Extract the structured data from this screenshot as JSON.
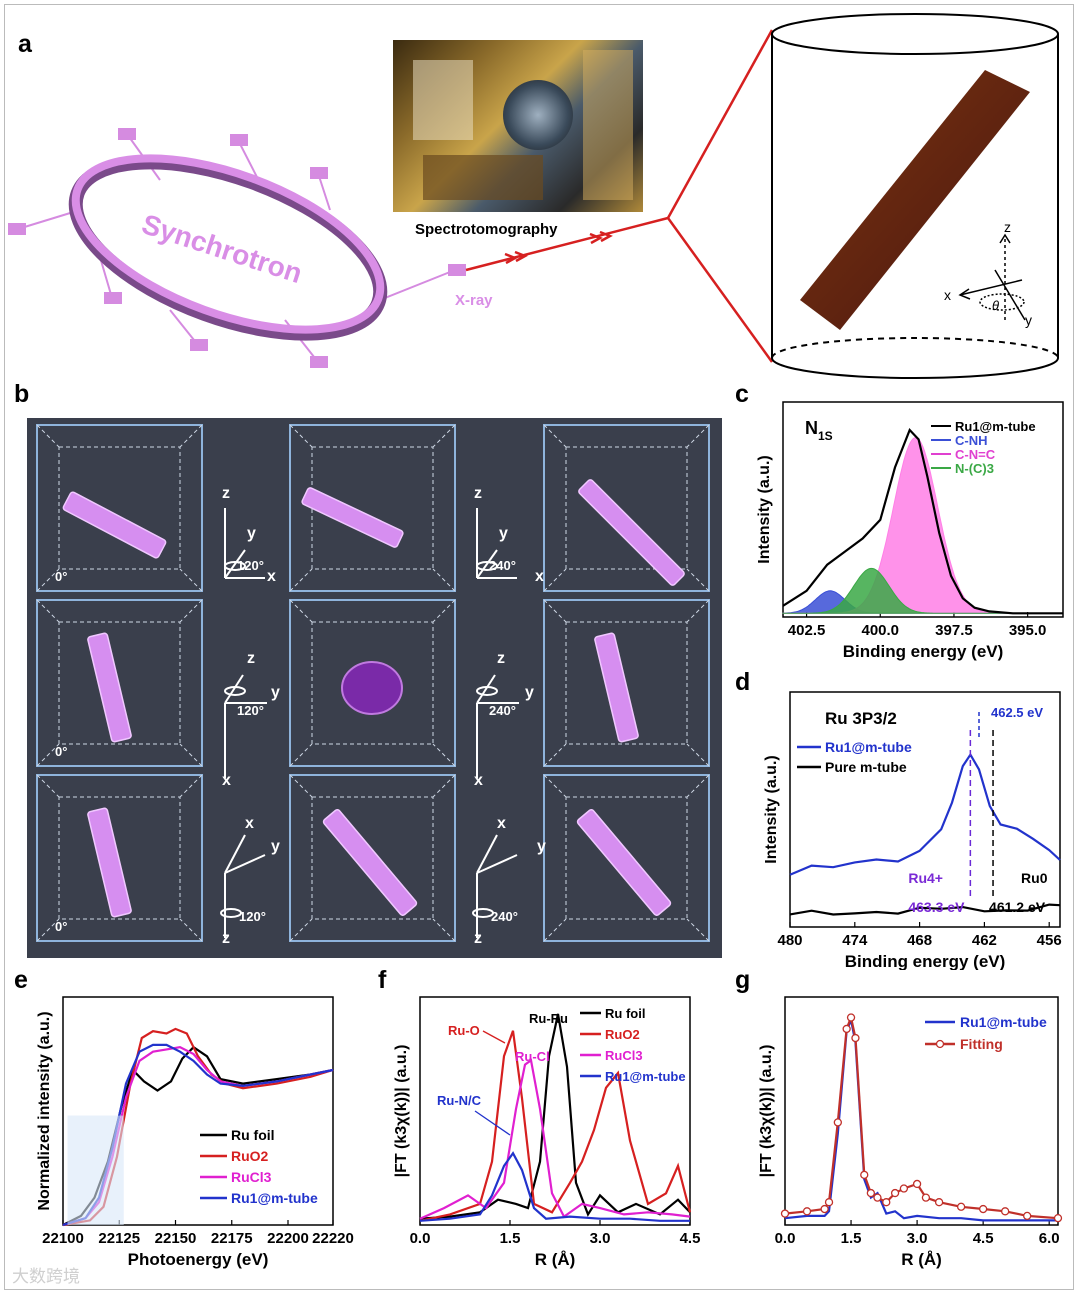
{
  "figure": {
    "panel_letters": [
      "a",
      "b",
      "c",
      "d",
      "e",
      "f",
      "g"
    ],
    "watermark": "大数跨境"
  },
  "panel_a": {
    "ring_label": "Synchrotron",
    "xray_label": "X-ray",
    "photo_caption": "Spectrotomography",
    "axis_z": "z",
    "axis_x": "x",
    "axis_y": "y",
    "angle_symbol": "θ"
  },
  "panel_b": {
    "angle_0": "0°",
    "rot_120": "120°",
    "rot_240": "240°",
    "ax_x": "x",
    "ax_y": "y",
    "ax_z": "z"
  },
  "chart_data": [
    {
      "id": "c",
      "type": "line",
      "title": "N1S",
      "xlabel": "Binding energy (eV)",
      "ylabel": "Intensity (a.u.)",
      "xlim": [
        403.3,
        393.8
      ],
      "xticks": [
        "402.5",
        "400.0",
        "397.5",
        "395.0"
      ],
      "xtick_values": [
        402.5,
        400.0,
        397.5,
        395.0
      ],
      "legend": [
        "Ru1@m-tube",
        "C-NH",
        "C-N=C",
        "N-(C)3"
      ],
      "series": [
        {
          "name": "Ru1@m-tube",
          "color": "#000000",
          "x": [
            403.3,
            402.5,
            401.8,
            401.2,
            400.6,
            400.0,
            399.5,
            399.0,
            398.7,
            398.4,
            398.0,
            397.6,
            397.2,
            396.8,
            396.3,
            395.5,
            394.5,
            393.8
          ],
          "y": [
            0.06,
            0.14,
            0.28,
            0.35,
            0.42,
            0.52,
            0.8,
            1.0,
            0.95,
            0.75,
            0.45,
            0.22,
            0.1,
            0.05,
            0.03,
            0.02,
            0.02,
            0.02
          ]
        },
        {
          "name": "C-NH",
          "color": "#3a4fd6",
          "peak": 401.7,
          "height": 0.12,
          "width": 0.5
        },
        {
          "name": "C-N=C",
          "color": "#ff7fe6",
          "peak": 398.8,
          "height": 0.94,
          "width": 0.75
        },
        {
          "name": "N-(C)3",
          "color": "#3aa845",
          "peak": 400.3,
          "height": 0.24,
          "width": 0.6
        }
      ]
    },
    {
      "id": "d",
      "type": "line",
      "title": "Ru 3P3/2",
      "xlabel": "Binding energy (eV)",
      "ylabel": "Intensity (a.u.)",
      "xlim": [
        480,
        455
      ],
      "xticks": [
        "480",
        "474",
        "468",
        "462",
        "456"
      ],
      "xtick_values": [
        480,
        474,
        468,
        462,
        456
      ],
      "legend": [
        "Ru1@m-tube",
        "Pure m-tube"
      ],
      "annotations": [
        "462.5 eV",
        "Ru4+",
        "Ru0",
        "463.3 eV",
        "461.2 eV"
      ],
      "series": [
        {
          "name": "Ru1@m-tube",
          "color": "#2233cc",
          "x": [
            480,
            478,
            476,
            474,
            472,
            470,
            468,
            466,
            465,
            464,
            463.3,
            462.5,
            461.5,
            460.5,
            459,
            457.5,
            456,
            455
          ],
          "y": [
            0.3,
            0.34,
            0.33,
            0.37,
            0.4,
            0.39,
            0.44,
            0.55,
            0.7,
            0.92,
            1.0,
            0.92,
            0.7,
            0.58,
            0.55,
            0.5,
            0.45,
            0.4
          ]
        },
        {
          "name": "Pure m-tube",
          "color": "#000000",
          "x": [
            480,
            478,
            476,
            474,
            472,
            470,
            468,
            466,
            464,
            462,
            460,
            458,
            456,
            455
          ],
          "y": [
            0.06,
            0.08,
            0.07,
            0.09,
            0.1,
            0.08,
            0.1,
            0.09,
            0.11,
            0.1,
            0.11,
            0.1,
            0.12,
            0.11
          ]
        }
      ]
    },
    {
      "id": "e",
      "type": "line",
      "title": "",
      "xlabel": "Photoenergy (eV)",
      "ylabel": "Normalized intensity (a.u.)",
      "xlim": [
        22100,
        22220
      ],
      "xticks": [
        "22100",
        "22125",
        "22150",
        "22175",
        "22200",
        "22220"
      ],
      "xtick_values": [
        22100,
        22125,
        22150,
        22175,
        22200,
        22220
      ],
      "legend": [
        "Ru foil",
        "RuO2",
        "RuCl3",
        "Ru1@m-tube"
      ],
      "series": [
        {
          "name": "Ru foil",
          "color": "#000000",
          "x": [
            22100,
            22108,
            22114,
            22120,
            22126,
            22131,
            22136,
            22142,
            22148,
            22153,
            22158,
            22164,
            22170,
            22180,
            22195,
            22210,
            22220
          ],
          "y": [
            0.0,
            0.04,
            0.12,
            0.28,
            0.52,
            0.68,
            0.63,
            0.59,
            0.63,
            0.73,
            0.78,
            0.74,
            0.64,
            0.62,
            0.64,
            0.66,
            0.68
          ]
        },
        {
          "name": "RuO2",
          "color": "#d62020",
          "x": [
            22100,
            22112,
            22118,
            22124,
            22130,
            22135,
            22140,
            22146,
            22150,
            22155,
            22160,
            22166,
            22172,
            22180,
            22195,
            22210,
            22220
          ],
          "y": [
            0.0,
            0.02,
            0.08,
            0.3,
            0.62,
            0.82,
            0.85,
            0.84,
            0.86,
            0.84,
            0.74,
            0.66,
            0.62,
            0.6,
            0.62,
            0.65,
            0.68
          ]
        },
        {
          "name": "RuCl3",
          "color": "#e020d0",
          "x": [
            22100,
            22110,
            22116,
            22122,
            22128,
            22134,
            22140,
            22146,
            22152,
            22158,
            22164,
            22170,
            22180,
            22195,
            22210,
            22220
          ],
          "y": [
            0.0,
            0.03,
            0.1,
            0.3,
            0.56,
            0.72,
            0.76,
            0.77,
            0.78,
            0.75,
            0.68,
            0.63,
            0.61,
            0.63,
            0.66,
            0.68
          ]
        },
        {
          "name": "Ru1@m-tube",
          "color": "#2233cc",
          "x": [
            22100,
            22110,
            22116,
            22122,
            22128,
            22134,
            22140,
            22146,
            22152,
            22158,
            22164,
            22170,
            22180,
            22195,
            22210,
            22220
          ],
          "y": [
            0.0,
            0.03,
            0.12,
            0.34,
            0.62,
            0.76,
            0.79,
            0.79,
            0.76,
            0.72,
            0.66,
            0.62,
            0.61,
            0.63,
            0.66,
            0.68
          ]
        }
      ]
    },
    {
      "id": "f",
      "type": "line",
      "title": "",
      "xlabel": "R (Å)",
      "ylabel": "|FT (k3χ(k))| (a.u.)",
      "xlim": [
        0,
        4.5
      ],
      "xticks": [
        "0.0",
        "1.5",
        "3.0",
        "4.5"
      ],
      "xtick_values": [
        0,
        1.5,
        3.0,
        4.5
      ],
      "legend": [
        "Ru foil",
        "RuO2",
        "RuCl3",
        "Ru1@m-tube"
      ],
      "annotations": [
        "Ru-Ru",
        "Ru-O",
        "Ru-Cl",
        "Ru-N/C"
      ],
      "series": [
        {
          "name": "Ru foil",
          "color": "#000000",
          "x": [
            0,
            0.5,
            1.0,
            1.3,
            1.6,
            1.8,
            2.0,
            2.15,
            2.3,
            2.45,
            2.6,
            2.8,
            3.0,
            3.3,
            3.6,
            4.0,
            4.3,
            4.5
          ],
          "y": [
            0.03,
            0.04,
            0.06,
            0.12,
            0.1,
            0.08,
            0.3,
            0.8,
            1.0,
            0.75,
            0.2,
            0.05,
            0.14,
            0.06,
            0.1,
            0.05,
            0.12,
            0.06
          ]
        },
        {
          "name": "RuO2",
          "color": "#d62020",
          "x": [
            0,
            0.5,
            1.0,
            1.2,
            1.4,
            1.55,
            1.7,
            1.9,
            2.2,
            2.5,
            2.7,
            2.9,
            3.1,
            3.3,
            3.5,
            3.8,
            4.1,
            4.3,
            4.5
          ],
          "y": [
            0.02,
            0.05,
            0.1,
            0.3,
            0.8,
            0.92,
            0.6,
            0.1,
            0.06,
            0.2,
            0.3,
            0.45,
            0.65,
            0.72,
            0.4,
            0.1,
            0.15,
            0.28,
            0.06
          ]
        },
        {
          "name": "RuCl3",
          "color": "#e020d0",
          "x": [
            0,
            0.4,
            0.8,
            1.1,
            1.4,
            1.6,
            1.75,
            1.85,
            2.0,
            2.2,
            2.4,
            2.7,
            3.0,
            3.4,
            3.8,
            4.2,
            4.5
          ],
          "y": [
            0.03,
            0.08,
            0.14,
            0.08,
            0.2,
            0.55,
            0.76,
            0.78,
            0.55,
            0.15,
            0.04,
            0.1,
            0.08,
            0.05,
            0.06,
            0.05,
            0.04
          ]
        },
        {
          "name": "Ru1@m-tube",
          "color": "#2233cc",
          "x": [
            0,
            0.5,
            1.0,
            1.2,
            1.4,
            1.55,
            1.7,
            1.9,
            2.1,
            2.5,
            3.0,
            3.5,
            4.0,
            4.5
          ],
          "y": [
            0.02,
            0.03,
            0.05,
            0.14,
            0.28,
            0.34,
            0.26,
            0.08,
            0.03,
            0.04,
            0.03,
            0.03,
            0.02,
            0.02
          ]
        }
      ]
    },
    {
      "id": "g",
      "type": "line",
      "title": "",
      "xlabel": "R (Å)",
      "ylabel": "|FT (k3χ(k))| (a.u.)",
      "xlim": [
        0,
        6.2
      ],
      "xticks": [
        "0.0",
        "1.5",
        "3.0",
        "4.5",
        "6.0"
      ],
      "xtick_values": [
        0,
        1.5,
        3.0,
        4.5,
        6.0
      ],
      "legend": [
        "Ru1@m-tube",
        "Fitting"
      ],
      "series": [
        {
          "name": "Ru1@m-tube",
          "color": "#2233cc",
          "x": [
            0,
            0.5,
            0.9,
            1.0,
            1.2,
            1.4,
            1.5,
            1.6,
            1.8,
            1.95,
            2.1,
            2.3,
            2.5,
            2.7,
            3.0,
            3.5,
            4.0,
            4.5,
            5.0,
            5.5,
            6.2
          ],
          "y": [
            0.03,
            0.04,
            0.04,
            0.06,
            0.4,
            0.85,
            0.9,
            0.8,
            0.2,
            0.12,
            0.14,
            0.05,
            0.06,
            0.03,
            0.04,
            0.03,
            0.03,
            0.02,
            0.02,
            0.02,
            0.02
          ]
        },
        {
          "name": "Fitting",
          "color": "#c0302a",
          "x": [
            0,
            0.5,
            0.9,
            1.0,
            1.2,
            1.4,
            1.5,
            1.6,
            1.8,
            1.95,
            2.1,
            2.3,
            2.5,
            2.7,
            3.0,
            3.2,
            3.5,
            4.0,
            4.5,
            5.0,
            5.5,
            6.2
          ],
          "y": [
            0.05,
            0.06,
            0.07,
            0.1,
            0.45,
            0.86,
            0.91,
            0.82,
            0.22,
            0.14,
            0.12,
            0.1,
            0.14,
            0.16,
            0.18,
            0.12,
            0.1,
            0.08,
            0.07,
            0.06,
            0.04,
            0.03
          ]
        }
      ]
    }
  ]
}
